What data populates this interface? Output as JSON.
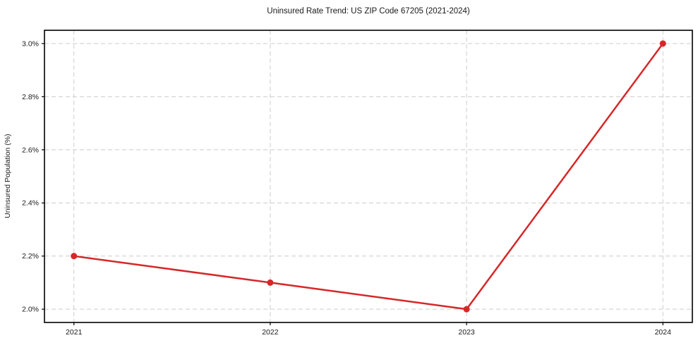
{
  "chart_data": {
    "type": "line",
    "title": "Uninsured Rate Trend: US ZIP Code 67205 (2021-2024)",
    "xlabel": "",
    "ylabel": "Uninsured Population (%)",
    "x": [
      2021,
      2022,
      2023,
      2024
    ],
    "xtick_labels": [
      "2021",
      "2022",
      "2023",
      "2024"
    ],
    "series": [
      {
        "name": "Uninsured rate",
        "values": [
          2.2,
          2.1,
          2.0,
          3.0
        ],
        "color": "#d62728",
        "marker": "circle"
      }
    ],
    "yticks": [
      2.0,
      2.2,
      2.4,
      2.6,
      2.8,
      3.0
    ],
    "ytick_labels": [
      "2.0%",
      "2.2%",
      "2.4%",
      "2.6%",
      "2.8%",
      "3.0%"
    ],
    "ylim": [
      1.95,
      3.05
    ],
    "x_margin_fraction": 0.05,
    "grid": true,
    "grid_style": "dashed",
    "grid_color": "#cccccc",
    "spine_color": "#000000",
    "legend": "none"
  }
}
